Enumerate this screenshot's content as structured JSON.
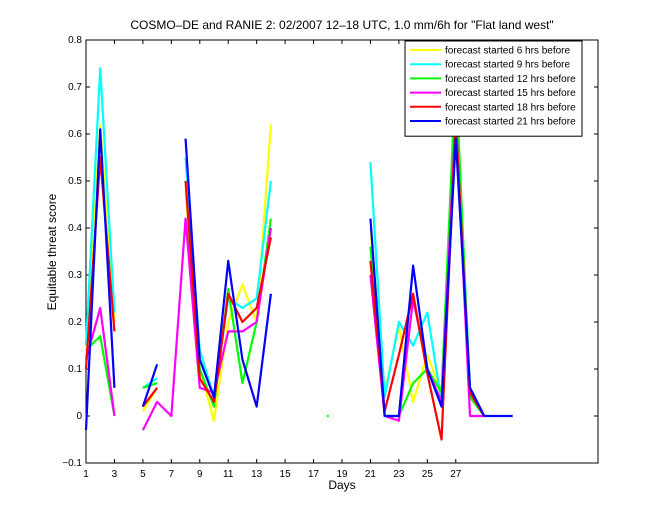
{
  "chart_data": {
    "type": "line",
    "title": "COSMO–DE and RANIE 2: 02/2007 12–18 UTC, 1.0 mm/6h for \"Flat land west\"",
    "xlabel": "Days",
    "ylabel": "Equitable threat score",
    "xlim": [
      1,
      37
    ],
    "ylim": [
      -0.1,
      0.8
    ],
    "xticks": [
      1,
      3,
      5,
      7,
      9,
      11,
      13,
      15,
      17,
      19,
      21,
      23,
      25,
      27
    ],
    "xtick_labels": [
      "1",
      "3",
      "5",
      "7",
      "9",
      "11",
      "13",
      "15",
      "17",
      "19",
      "21",
      "23",
      "25",
      "27"
    ],
    "yticks": [
      -0.1,
      0,
      0.1,
      0.2,
      0.3,
      0.4,
      0.5,
      0.6,
      0.7,
      0.8
    ],
    "ytick_labels": [
      "−0.1",
      "0",
      "0.1",
      "0.2",
      "0.3",
      "0.4",
      "0.5",
      "0.6",
      "0.7",
      "0.8"
    ],
    "legend_position": "top-right",
    "grid": false,
    "x": [
      1,
      2,
      3,
      4,
      5,
      6,
      7,
      8,
      9,
      10,
      11,
      12,
      13,
      14,
      15,
      16,
      17,
      18,
      19,
      20,
      21,
      22,
      23,
      24,
      25,
      26,
      27,
      28,
      29,
      30,
      31
    ],
    "series": [
      {
        "name": "forecast started 6 hrs before",
        "color": "#ffff00",
        "values": [
          0.13,
          0.62,
          0.2,
          null,
          0.01,
          0.06,
          null,
          0.48,
          0.1,
          -0.01,
          0.2,
          0.28,
          0.2,
          0.62,
          null,
          null,
          null,
          null,
          null,
          null,
          0.4,
          0.05,
          0.19,
          0.03,
          0.13,
          0.05,
          0.6,
          0.05,
          0.0,
          null,
          null
        ]
      },
      {
        "name": "forecast started 9 hrs before",
        "color": "#00ffff",
        "values": [
          0.15,
          0.74,
          0.22,
          null,
          0.06,
          0.08,
          null,
          0.55,
          0.14,
          0.04,
          0.25,
          0.23,
          0.25,
          0.5,
          null,
          null,
          null,
          null,
          null,
          null,
          0.54,
          0.04,
          0.2,
          0.15,
          0.22,
          0.03,
          0.7,
          0.06,
          0.0,
          null,
          null
        ]
      },
      {
        "name": "forecast started 12 hrs before",
        "color": "#00ff00",
        "values": [
          0.14,
          0.17,
          0.0,
          null,
          0.06,
          0.07,
          null,
          0.42,
          0.1,
          0.02,
          0.27,
          0.07,
          0.2,
          0.42,
          null,
          null,
          null,
          0.0,
          null,
          null,
          0.36,
          0.0,
          0.0,
          0.07,
          0.1,
          0.05,
          0.73,
          0.04,
          0.0,
          null,
          null
        ]
      },
      {
        "name": "forecast started 15 hrs before",
        "color": "#ff00ff",
        "values": [
          0.12,
          0.23,
          0.0,
          null,
          -0.03,
          0.03,
          0.0,
          0.42,
          0.06,
          0.05,
          0.18,
          0.18,
          0.2,
          0.4,
          null,
          null,
          null,
          null,
          null,
          null,
          0.3,
          0.0,
          -0.01,
          0.25,
          0.1,
          0.03,
          0.64,
          0.0,
          0.0,
          null,
          null
        ]
      },
      {
        "name": "forecast started 18 hrs before",
        "color": "#ff0000",
        "values": [
          0.1,
          0.55,
          0.18,
          null,
          0.02,
          0.06,
          null,
          0.5,
          0.08,
          0.03,
          0.26,
          0.2,
          0.23,
          0.38,
          null,
          null,
          null,
          null,
          null,
          null,
          0.33,
          0.01,
          0.13,
          0.26,
          0.09,
          -0.05,
          0.63,
          0.05,
          0.0,
          null,
          null
        ]
      },
      {
        "name": "forecast started 21 hrs before",
        "color": "#0000ff",
        "values": [
          -0.03,
          0.61,
          0.06,
          null,
          0.02,
          0.11,
          null,
          0.59,
          0.12,
          0.04,
          0.33,
          0.12,
          0.02,
          0.26,
          null,
          null,
          null,
          null,
          null,
          null,
          0.42,
          0.0,
          0.0,
          0.32,
          0.1,
          0.02,
          0.59,
          0.06,
          0.0,
          0.0,
          0.0
        ]
      }
    ]
  }
}
